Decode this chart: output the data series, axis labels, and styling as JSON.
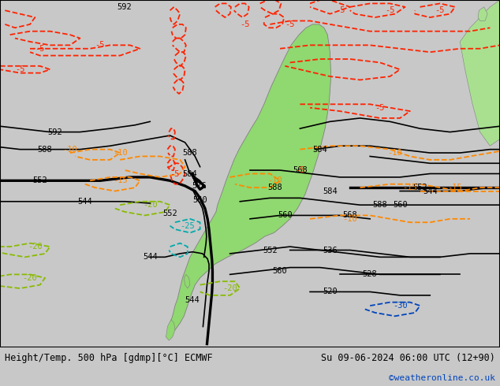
{
  "title_left": "Height/Temp. 500 hPa [gdmp][°C] ECMWF",
  "title_right": "Su 09-06-2024 06:00 UTC (12+90)",
  "credit": "©weatheronline.co.uk",
  "bg_color": "#c8c8c8",
  "ocean_color": "#dcdcdc",
  "land_sa_color": "#90d870",
  "land_other_color": "#a8e090",
  "fig_width": 6.34,
  "fig_height": 4.9,
  "dpi": 100,
  "title_fontsize": 8.5,
  "credit_fontsize": 8,
  "credit_color": "#0044bb"
}
